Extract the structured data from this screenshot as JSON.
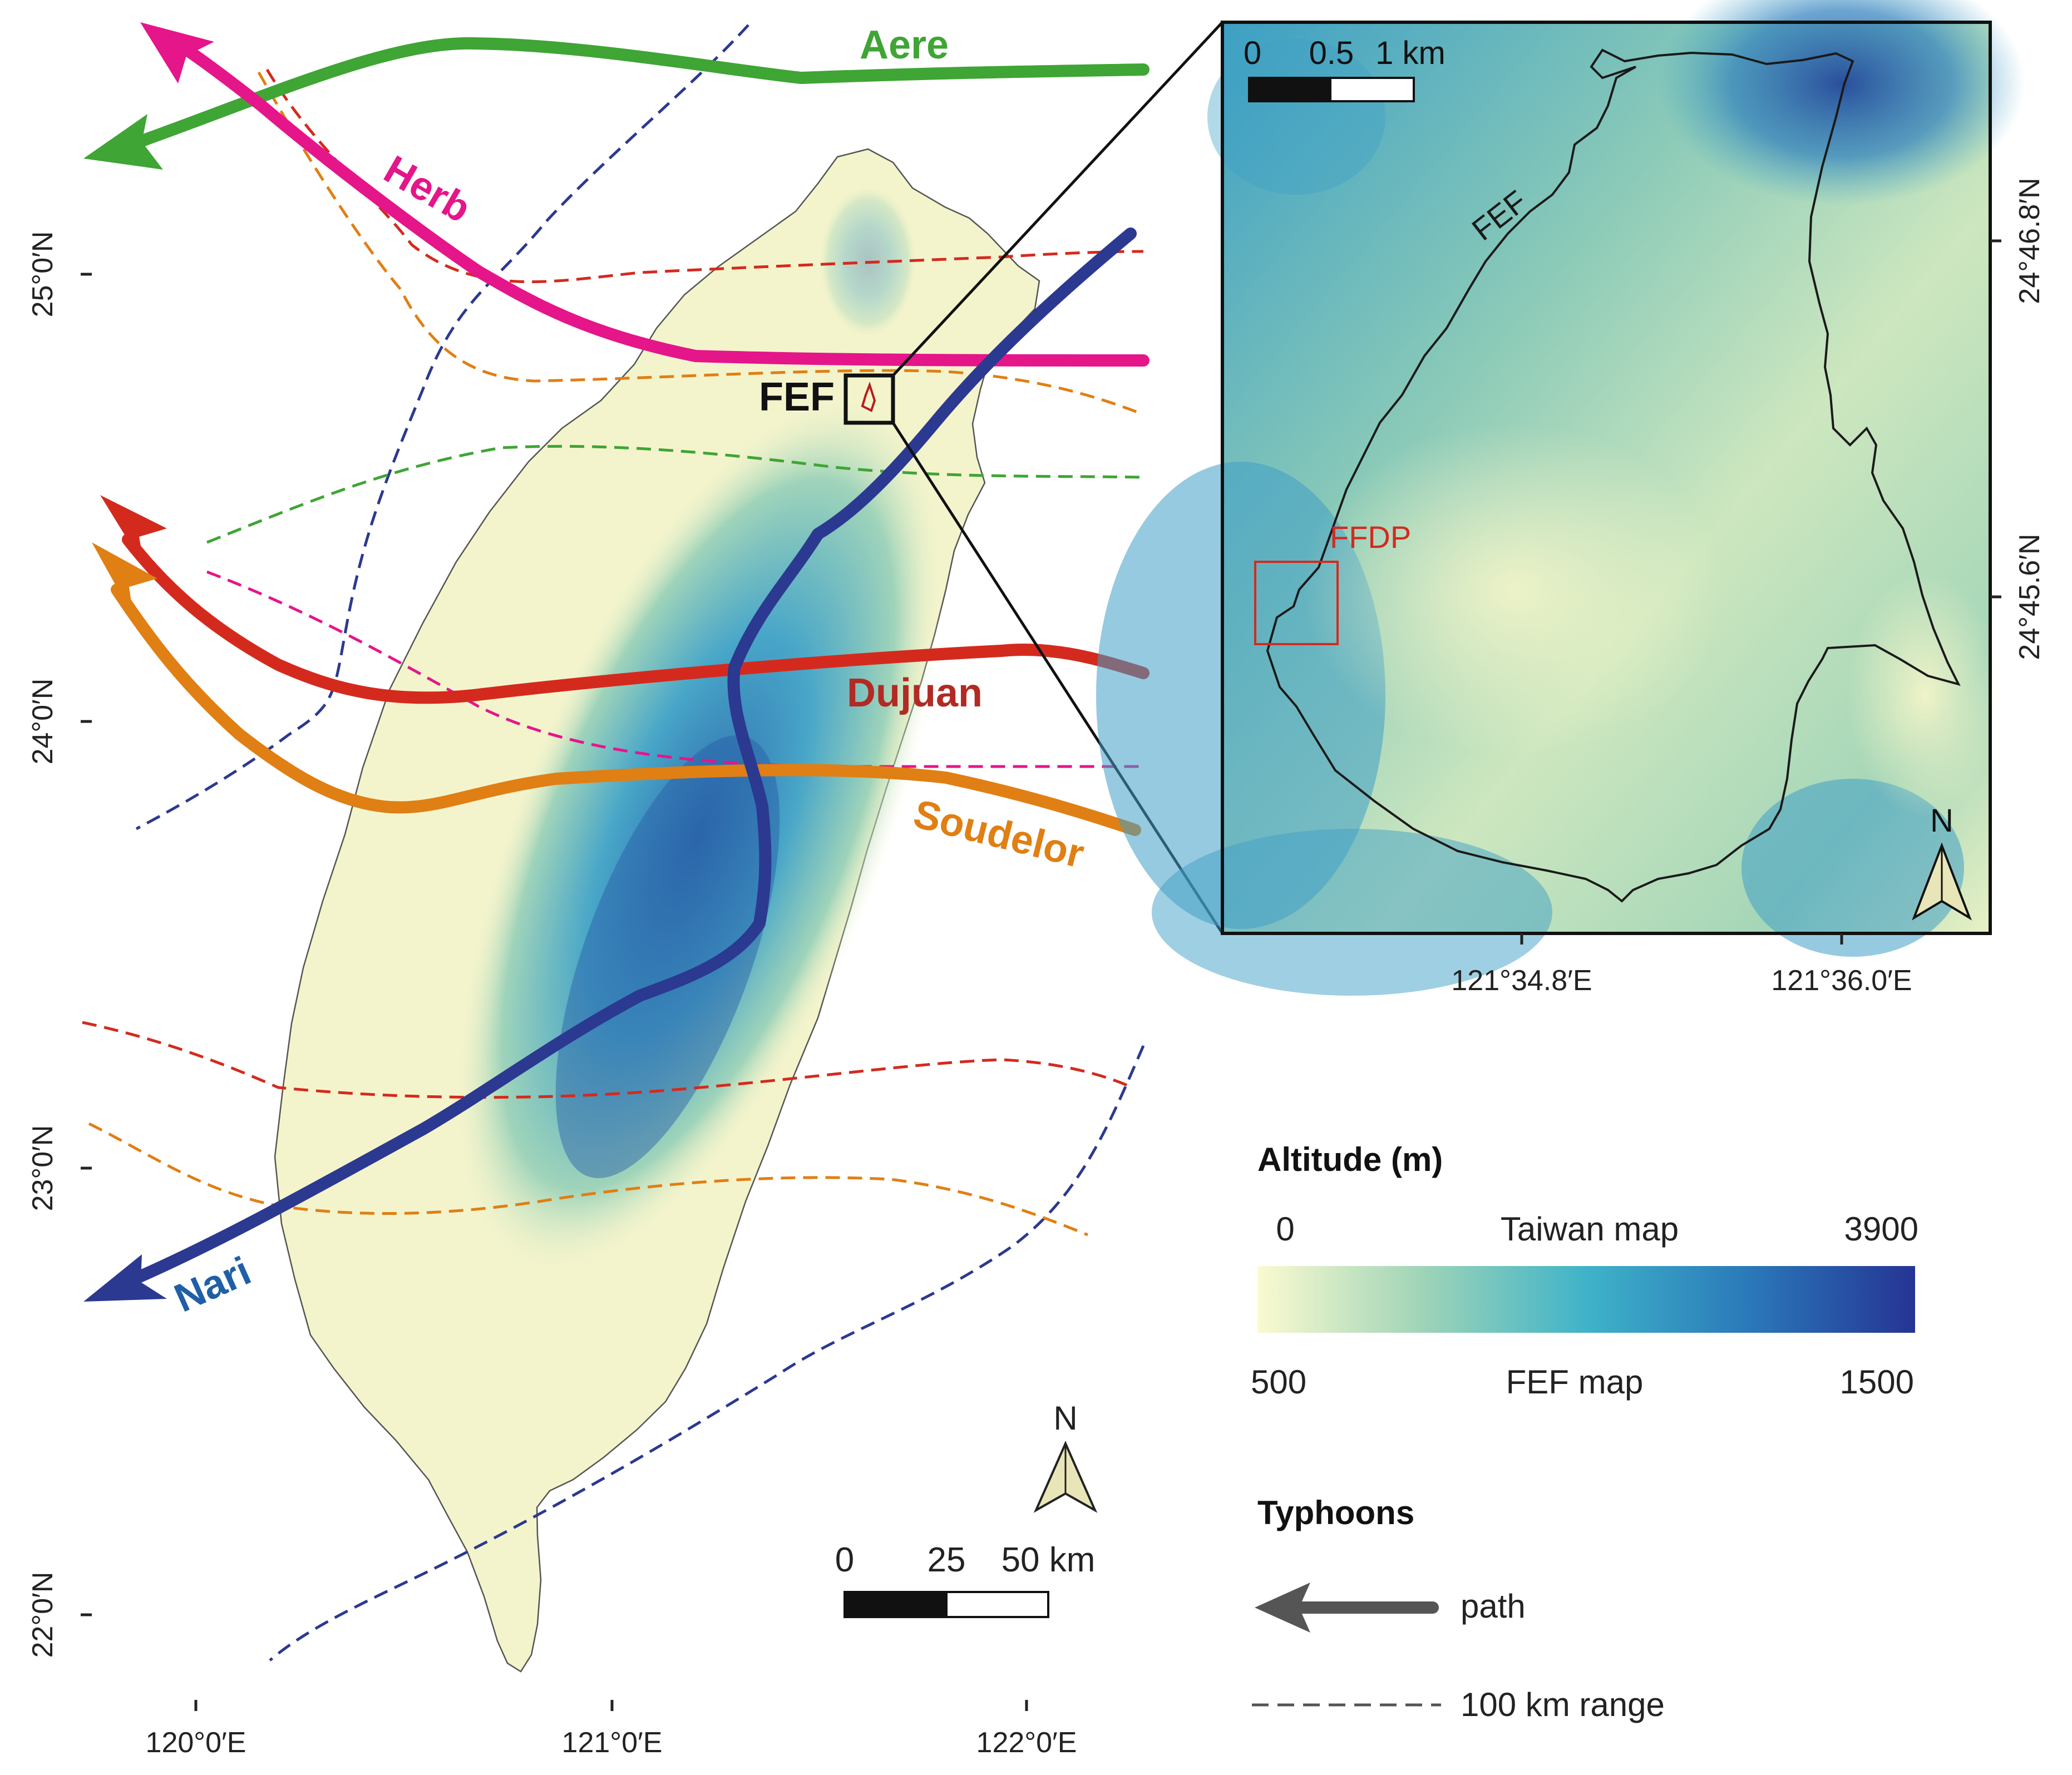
{
  "main_map": {
    "lat_labels": [
      "25°0′N",
      "24°0′N",
      "23°0′N",
      "22°0′N"
    ],
    "lon_labels": [
      "120°0′E",
      "121°0′E",
      "122°0′E"
    ],
    "site_label": "FEF",
    "scale": {
      "ticks": [
        "0",
        "25",
        "50 km"
      ]
    },
    "north_label": "N"
  },
  "typhoons": [
    {
      "name": "Aere",
      "color": "#3fa535"
    },
    {
      "name": "Herb",
      "color": "#e5158a"
    },
    {
      "name": "Dujuan",
      "color": "#d42a1e",
      "label_color": "#b22a24"
    },
    {
      "name": "Soudelor",
      "color": "#e07f14"
    },
    {
      "name": "Nari",
      "color": "#2b3990",
      "label_color": "#1f5fa6"
    }
  ],
  "inset": {
    "scale": {
      "ticks": [
        "0",
        "0.5",
        "1 km"
      ]
    },
    "watershed_label": "FEF",
    "plot_label": "FFDP",
    "plot_color": "#d42a1e",
    "lat_labels": [
      "24°46.8′N",
      "24°45.6′N"
    ],
    "lon_labels": [
      "121°34.8′E",
      "121°36.0′E"
    ],
    "north_label": "N"
  },
  "legend": {
    "altitude_title": "Altitude (m)",
    "taiwan_map": {
      "label": "Taiwan map",
      "min": "0",
      "max": "3900"
    },
    "fef_map": {
      "label": "FEF map",
      "min": "500",
      "max": "1500"
    },
    "colors": [
      "#fbfad0",
      "#9fd4b7",
      "#3fb3c9",
      "#2a78b9",
      "#253494"
    ],
    "typhoons_title": "Typhoons",
    "path_label": "path",
    "range_label": "100 km range"
  }
}
